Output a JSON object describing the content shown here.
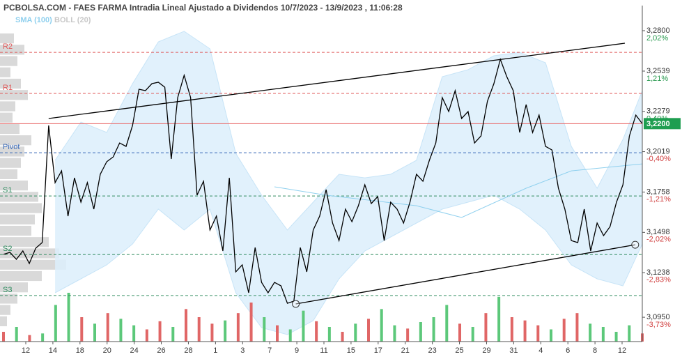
{
  "chart_data": {
    "type": "line",
    "title": "PCBOLSA.COM - FAES FARMA Intradia Lineal Ajustado a Dividendos 10/7/2023 - 13/9/2023 , 11:06:28",
    "xlim": [
      0,
      99
    ],
    "ylim": [
      3.0793,
      3.2962
    ],
    "yticks": [
      {
        "value": 3.28,
        "label": "3,2800"
      },
      {
        "value": 3.2539,
        "label": "3,2539"
      },
      {
        "value": 3.2279,
        "label": "3,2279"
      },
      {
        "value": 3.2019,
        "label": "3,2019"
      },
      {
        "value": 3.1758,
        "label": "3,1758"
      },
      {
        "value": 3.1498,
        "label": "3,1498"
      },
      {
        "value": 3.1238,
        "label": "3,1238"
      },
      {
        "value": 3.095,
        "label": "3,0950"
      }
    ],
    "y2lim": [
      -4.066,
      2.678
    ],
    "y2ticks": [
      {
        "value": 2.02,
        "label": "2,02%"
      },
      {
        "value": 1.21,
        "label": "1,21%"
      },
      {
        "value": 0.4,
        "label": "0,40%"
      },
      {
        "value": -0.4,
        "label": "-0,40%"
      },
      {
        "value": -1.21,
        "label": "-1,21%"
      },
      {
        "value": -2.02,
        "label": "-2,02%"
      },
      {
        "value": -2.83,
        "label": "-2,83%"
      },
      {
        "value": -3.73,
        "label": "-3,73%"
      }
    ],
    "x_labels": [
      "12",
      "14",
      "18",
      "20",
      "24",
      "26",
      "28",
      "1",
      "3",
      "7",
      "9",
      "11",
      "15",
      "17",
      "21",
      "23",
      "25",
      "29",
      "31",
      "4",
      "6",
      "8",
      "12"
    ],
    "series": [
      {
        "color": "#000000",
        "values": [
          3.1356,
          3.1369,
          3.1324,
          3.1378,
          3.1297,
          3.1396,
          3.1432,
          3.2188,
          3.1819,
          3.1895,
          3.1603,
          3.185,
          3.1693,
          3.1819,
          3.1648,
          3.1873,
          3.1954,
          3.1985,
          3.2075,
          3.2053,
          3.2188,
          3.2422,
          3.2413,
          3.2458,
          3.2467,
          3.2435,
          3.1972,
          3.2368,
          3.2512,
          3.2368,
          3.1738,
          3.1828,
          3.1513,
          3.1603,
          3.1378,
          3.185,
          3.1243,
          3.1288,
          3.1108,
          3.14,
          3.1175,
          3.1108,
          3.1175,
          3.1153,
          3.104,
          3.1054,
          3.14,
          3.1243,
          3.1513,
          3.1603,
          3.1774,
          3.1558,
          3.1445,
          3.1648,
          3.1567,
          3.167,
          3.1805,
          3.1684,
          3.1729,
          3.1445,
          3.1693,
          3.1648,
          3.1558,
          3.1693,
          3.1873,
          3.1828,
          3.1963,
          3.2075,
          3.2368,
          3.2278,
          3.2413,
          3.2233,
          3.2278,
          3.2075,
          3.212,
          3.2345,
          3.2458,
          3.2615,
          3.2503,
          3.2413,
          3.2143,
          3.2323,
          3.2143,
          3.2255,
          3.2053,
          3.203,
          3.1783,
          3.1648,
          3.1445,
          3.1432,
          3.1648,
          3.1378,
          3.1558,
          3.1477,
          3.1535,
          3.1693,
          3.1805,
          3.212,
          3.2255,
          3.22
        ]
      }
    ],
    "bands": {
      "name": "BOLL (20)",
      "color": "#c8c8c8",
      "fill": "#dceffc",
      "x": [
        8,
        12,
        16,
        20,
        24,
        28,
        32,
        36,
        40,
        44,
        48,
        52,
        56,
        60,
        64,
        68,
        72,
        76,
        80,
        84,
        88,
        92,
        96,
        99
      ],
      "upper": [
        3.1963,
        3.221,
        3.2143,
        3.2458,
        3.2728,
        3.2796,
        3.2683,
        3.2008,
        3.1738,
        3.1513,
        3.1693,
        3.1873,
        3.185,
        3.1873,
        3.1963,
        3.2503,
        3.2548,
        3.2638,
        3.266,
        3.2593,
        3.2053,
        3.1783,
        3.2098,
        3.2413
      ],
      "lower": [
        3.1108,
        3.1198,
        3.1288,
        3.1423,
        3.1648,
        3.1513,
        3.1648,
        3.1108,
        3.0883,
        3.0838,
        3.0928,
        3.1198,
        3.1378,
        3.1468,
        3.1558,
        3.1648,
        3.1693,
        3.1738,
        3.1648,
        3.1513,
        3.1288,
        3.1198,
        3.1153,
        3.1423
      ]
    },
    "sma": {
      "name": "SMA (100)",
      "color": "#8fd0ee",
      "x": [
        42,
        50,
        64,
        71,
        81,
        88,
        99
      ],
      "values": [
        3.1792,
        3.1738,
        3.167,
        3.1594,
        3.1783,
        3.1895,
        3.194
      ]
    },
    "trendlines": [
      {
        "x": [
          7,
          96.3
        ],
        "y": [
          3.2233,
          3.2719
        ],
        "markers": false
      },
      {
        "x": [
          45.3,
          97.9
        ],
        "y": [
          3.1036,
          3.1418
        ],
        "markers": true
      }
    ],
    "levels": [
      {
        "label": "R2",
        "value": 3.266,
        "color": "#e05a5a"
      },
      {
        "label": "R1",
        "value": 3.2395,
        "color": "#e05a5a"
      },
      {
        "label": "Pivot",
        "value": 3.2012,
        "color": "#3a6ab8"
      },
      {
        "label": "S1",
        "value": 3.1733,
        "color": "#2e8b5e"
      },
      {
        "label": "S2",
        "value": 3.1355,
        "color": "#2e8b5e"
      },
      {
        "label": "S3",
        "value": 3.109,
        "color": "#2e8b5e"
      }
    ],
    "last_price": {
      "value": 3.22,
      "label": "3,2200",
      "color": "#1e9e50",
      "line_color": "#e86a6a"
    },
    "volume": {
      "values": [
        12,
        18,
        8,
        10,
        45,
        60,
        30,
        22,
        35,
        28,
        20,
        15,
        25,
        18,
        40,
        30,
        22,
        26,
        35,
        48,
        30,
        20,
        15,
        38,
        25,
        18,
        12,
        22,
        28,
        40,
        20,
        16,
        24,
        30,
        45,
        22,
        18,
        35,
        55,
        30,
        26,
        20,
        15,
        28,
        35,
        22,
        18,
        12,
        20,
        10
      ],
      "colors": [
        "#e06666",
        "#5cc87a",
        "#e06666",
        "#5cc87a",
        "#5cc87a",
        "#5cc87a",
        "#e06666",
        "#5cc87a",
        "#e06666",
        "#5cc87a",
        "#5cc87a",
        "#e06666",
        "#e06666",
        "#5cc87a",
        "#e06666",
        "#e06666",
        "#e06666",
        "#5cc87a",
        "#e06666",
        "#e06666",
        "#5cc87a",
        "#e06666",
        "#5cc87a",
        "#5cc87a",
        "#e06666",
        "#5cc87a",
        "#e06666",
        "#5cc87a",
        "#e06666",
        "#5cc87a",
        "#5cc87a",
        "#e06666",
        "#5cc87a",
        "#5cc87a",
        "#5cc87a",
        "#e06666",
        "#5cc87a",
        "#e06666",
        "#5cc87a",
        "#e06666",
        "#e06666",
        "#e06666",
        "#5cc87a",
        "#e06666",
        "#e06666",
        "#5cc87a",
        "#5cc87a",
        "#5cc87a",
        "#5cc87a",
        "#e06666"
      ]
    },
    "volume_profile": {
      "color": "#d9d9d9",
      "values": [
        20,
        35,
        25,
        15,
        30,
        40,
        22,
        18,
        28,
        45,
        35,
        30,
        25,
        40,
        55,
        60,
        50,
        45,
        70,
        85,
        95,
        60,
        40,
        25,
        15,
        10
      ]
    }
  }
}
